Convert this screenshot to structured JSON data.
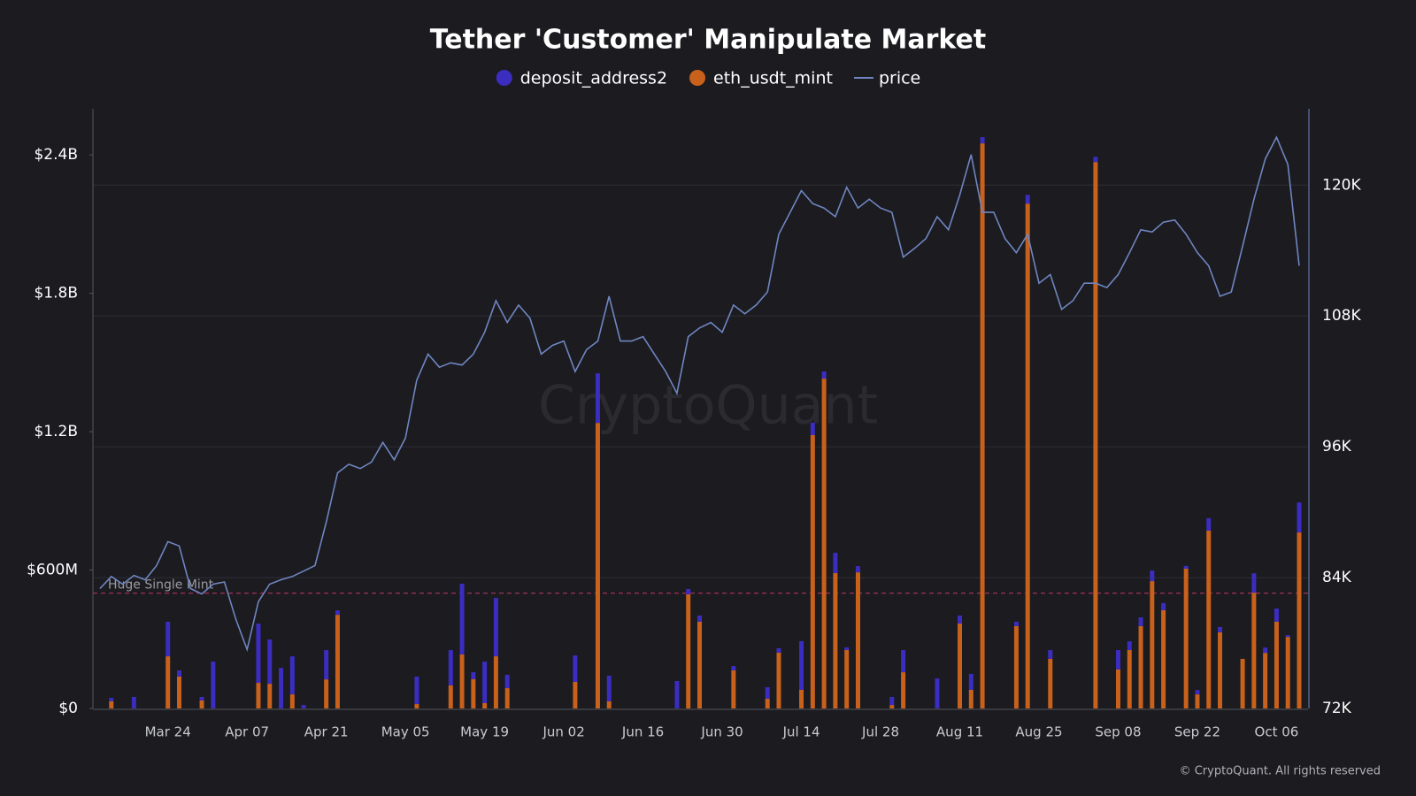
{
  "chart_data": {
    "type": "bar_line",
    "title": "Tether 'Customer' Manipulate Market",
    "watermark": "CryptoQuant",
    "credit": "© CryptoQuant. All rights reserved",
    "categories": [
      null,
      null,
      null,
      null,
      null,
      null,
      "Mar 24",
      null,
      null,
      null,
      null,
      null,
      null,
      "Apr 07",
      null,
      null,
      null,
      null,
      null,
      null,
      "Apr 21",
      null,
      null,
      null,
      null,
      null,
      null,
      "May 05",
      null,
      null,
      null,
      null,
      null,
      null,
      "May 19",
      null,
      null,
      null,
      null,
      null,
      null,
      "Jun 02",
      null,
      null,
      null,
      null,
      null,
      null,
      "Jun 16",
      null,
      null,
      null,
      null,
      null,
      null,
      "Jun 30",
      null,
      null,
      null,
      null,
      null,
      null,
      "Jul 14",
      null,
      null,
      null,
      null,
      null,
      null,
      "Jul 28",
      null,
      null,
      null,
      null,
      null,
      null,
      "Aug 11",
      null,
      null,
      null,
      null,
      null,
      null,
      "Aug 25",
      null,
      null,
      null,
      null,
      null,
      null,
      "Sep 08",
      null,
      null,
      null,
      null,
      null,
      null,
      "Sep 22",
      null,
      null,
      null,
      null,
      null,
      null,
      "Oct 06",
      null,
      null
    ],
    "series": [
      {
        "name": "deposit_address2",
        "type": "bar",
        "color": "#3b2dbf",
        "values": [
          0,
          15,
          0,
          50,
          0,
          0,
          150,
          27,
          0,
          15,
          203,
          0,
          0,
          0,
          257,
          192,
          176,
          165,
          15,
          0,
          127,
          19,
          0,
          0,
          0,
          0,
          0,
          0,
          119,
          0,
          0,
          153,
          307,
          30,
          180,
          253,
          58,
          0,
          0,
          0,
          0,
          0,
          115,
          0,
          215,
          111,
          0,
          0,
          0,
          0,
          0,
          119,
          23,
          27,
          0,
          0,
          19,
          0,
          0,
          50,
          19,
          0,
          211,
          54,
          31,
          88,
          12,
          27,
          0,
          0,
          35,
          96,
          0,
          0,
          130,
          0,
          35,
          69,
          27,
          0,
          0,
          19,
          38,
          0,
          38,
          0,
          0,
          0,
          23,
          0,
          84,
          38,
          38,
          46,
          31,
          0,
          12,
          19,
          54,
          23,
          0,
          0,
          84,
          23,
          57,
          8,
          130
        ]
      },
      {
        "name": "eth_usdt_mint",
        "type": "bar",
        "color": "#c8611c",
        "values": [
          0,
          31,
          0,
          0,
          0,
          0,
          226,
          138,
          0,
          35,
          0,
          0,
          0,
          0,
          111,
          107,
          0,
          61,
          0,
          0,
          126,
          406,
          0,
          0,
          0,
          0,
          0,
          0,
          19,
          0,
          0,
          100,
          234,
          127,
          23,
          226,
          88,
          0,
          0,
          0,
          0,
          0,
          115,
          0,
          1238,
          31,
          0,
          0,
          0,
          0,
          0,
          0,
          495,
          376,
          0,
          0,
          165,
          0,
          0,
          42,
          242,
          0,
          81,
          1185,
          1430,
          587,
          253,
          590,
          0,
          0,
          15,
          157,
          0,
          0,
          0,
          0,
          368,
          81,
          2450,
          0,
          0,
          357,
          2189,
          0,
          215,
          0,
          0,
          0,
          2369,
          0,
          169,
          253,
          357,
          552,
          426,
          0,
          606,
          61,
          771,
          330,
          0,
          215,
          502,
          241,
          376,
          310,
          763
        ]
      },
      {
        "name": "price",
        "type": "line",
        "axis": "y2",
        "color": "#6f86c0",
        "values": [
          83000,
          84100,
          83400,
          84200,
          83800,
          85100,
          87300,
          86900,
          83000,
          82500,
          83400,
          83600,
          80200,
          77400,
          81800,
          83400,
          83800,
          84100,
          84600,
          85100,
          89100,
          93600,
          94400,
          94000,
          94600,
          96400,
          94800,
          96800,
          102100,
          104500,
          103300,
          103700,
          103500,
          104500,
          106500,
          109400,
          107400,
          109000,
          107800,
          104500,
          105300,
          105700,
          102900,
          104900,
          105700,
          109800,
          105700,
          105700,
          106100,
          104500,
          102900,
          100900,
          106100,
          106900,
          107400,
          106500,
          109000,
          108200,
          109000,
          110200,
          115500,
          117500,
          119500,
          118300,
          117900,
          117100,
          119800,
          117900,
          118700,
          117900,
          117500,
          113400,
          114200,
          115100,
          117100,
          115900,
          119100,
          122800,
          117500,
          117500,
          115100,
          113800,
          115500,
          111000,
          111800,
          108600,
          109400,
          111000,
          111000,
          110600,
          111800,
          113800,
          115900,
          115700,
          116600,
          116800,
          115500,
          113800,
          112600,
          109800,
          110200,
          114400,
          118700,
          122400,
          124400,
          121900,
          112600
        ]
      }
    ],
    "ylim": [
      0,
      2600
    ],
    "yticks": [
      {
        "value": 0,
        "label": "$0"
      },
      {
        "value": 600,
        "label": "$600M"
      },
      {
        "value": 1200,
        "label": "$1.2B"
      },
      {
        "value": 1800,
        "label": "$1.8B"
      },
      {
        "value": 2400,
        "label": "$2.4B"
      }
    ],
    "y2lim": [
      72000,
      127000
    ],
    "y2ticks": [
      {
        "value": 72000,
        "label": "72K"
      },
      {
        "value": 84000,
        "label": "84K"
      },
      {
        "value": 96000,
        "label": "96K"
      },
      {
        "value": 108000,
        "label": "108K"
      },
      {
        "value": 120000,
        "label": "120K"
      }
    ],
    "grid": true,
    "annotations": [
      {
        "text": "Huge Single Mint",
        "value": 500,
        "color": "#a0305a"
      }
    ]
  }
}
